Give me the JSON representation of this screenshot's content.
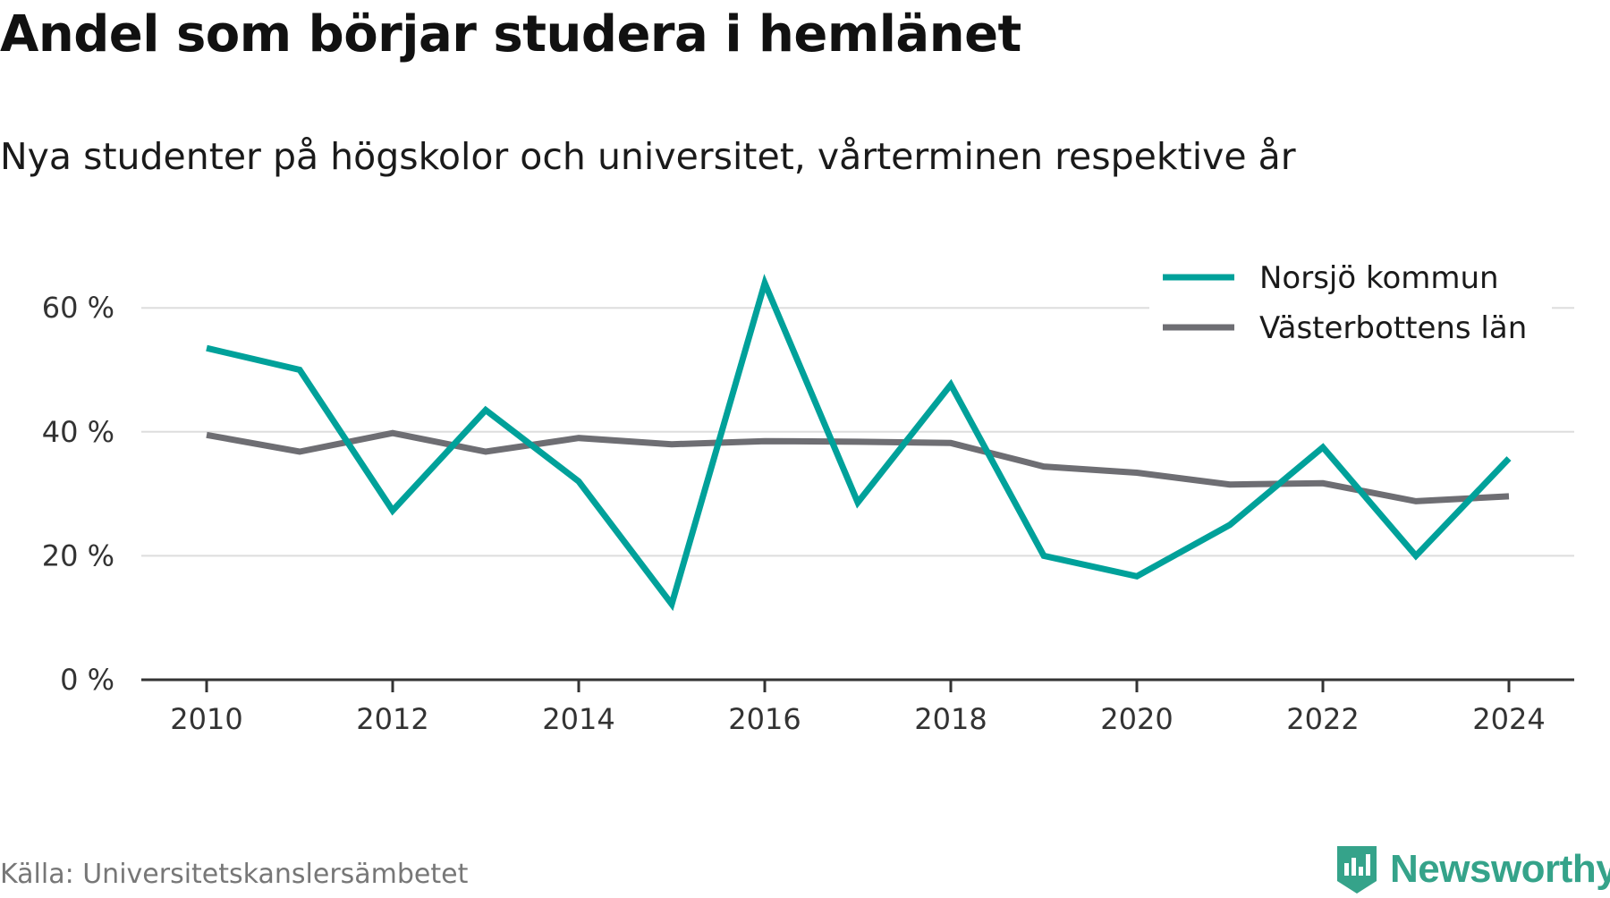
{
  "title": "Andel som börjar studera i hemlänet",
  "subtitle": "Nya studenter på högskolor och universitet, vårterminen respektive år",
  "source": "Källa: Universitetskanslersämbetet",
  "brand": {
    "name": "Newsworthy",
    "color": "#35a38a",
    "icon": "newsworthy-logo-icon"
  },
  "chart_data": {
    "type": "line",
    "x": [
      2010,
      2011,
      2012,
      2013,
      2014,
      2015,
      2016,
      2017,
      2018,
      2019,
      2020,
      2021,
      2022,
      2023,
      2024
    ],
    "series": [
      {
        "name": "Norsjö kommun",
        "color": "#00a19a",
        "values": [
          53.5,
          50,
          27.3,
          43.5,
          32,
          12.2,
          64,
          28.6,
          47.6,
          20,
          16.7,
          25,
          37.5,
          20,
          35.7
        ]
      },
      {
        "name": "Västerbottens län",
        "color": "#6e6e73",
        "values": [
          39.5,
          36.8,
          39.8,
          36.8,
          39,
          38,
          38.5,
          38.4,
          38.2,
          34.4,
          33.4,
          31.5,
          31.7,
          28.8,
          29.6
        ]
      }
    ],
    "xticks": [
      "2010",
      "2012",
      "2014",
      "2016",
      "2018",
      "2020",
      "2022",
      "2024"
    ],
    "yticks": [
      "0 %",
      "20 %",
      "40 %",
      "60 %"
    ],
    "ytick_values": [
      0,
      20,
      40,
      60
    ],
    "xlim": [
      2010,
      2024
    ],
    "ylim": [
      0,
      70
    ],
    "grid": true,
    "legend": "top-right"
  }
}
